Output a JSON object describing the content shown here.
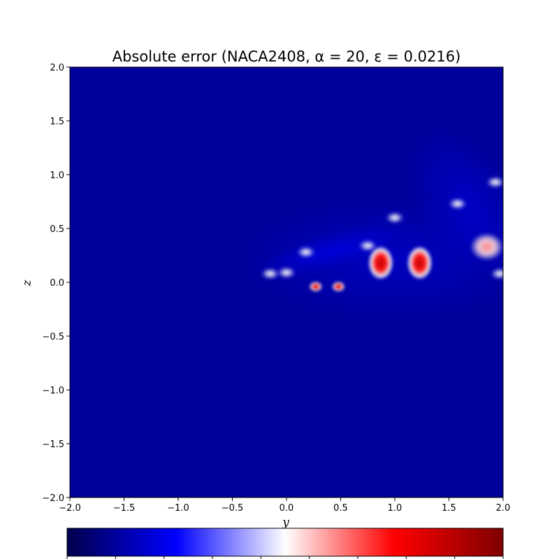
{
  "chart_data": {
    "type": "heatmap",
    "title": "Absolute error (NACA2408, α = 20, ε = 0.0216)",
    "xlabel": "y",
    "ylabel": "z",
    "xlim": [
      -2.0,
      2.0
    ],
    "ylim": [
      -2.0,
      2.0
    ],
    "x_ticks": [
      "−2.0",
      "−1.5",
      "−1.0",
      "−0.5",
      "0.0",
      "0.5",
      "1.0",
      "1.5",
      "2.0"
    ],
    "y_ticks": [
      "2.0",
      "1.5",
      "1.0",
      "0.5",
      "0.0",
      "−0.5",
      "−1.0",
      "−1.5",
      "−2.0"
    ],
    "colormap": "seismic",
    "colormap_stops": [
      "#00004c",
      "#0000ff",
      "#ffffff",
      "#ff0000",
      "#7f0000"
    ],
    "colorbar": {
      "orientation": "horizontal",
      "location": "bottom",
      "tick_count": 10
    },
    "background_color": "#00009a",
    "hotspots": [
      {
        "y": -0.15,
        "z": 0.08,
        "level": 0.55
      },
      {
        "y": 0.0,
        "z": 0.09,
        "level": 0.52
      },
      {
        "y": 0.27,
        "z": -0.04,
        "level": 0.72
      },
      {
        "y": 0.48,
        "z": -0.04,
        "level": 0.74
      },
      {
        "y": 0.18,
        "z": 0.28,
        "level": 0.48
      },
      {
        "y": 0.75,
        "z": 0.34,
        "level": 0.55
      },
      {
        "y": 0.87,
        "z": 0.18,
        "level": 0.92
      },
      {
        "y": 1.0,
        "z": 0.6,
        "level": 0.56
      },
      {
        "y": 1.23,
        "z": 0.18,
        "level": 0.9
      },
      {
        "y": 1.58,
        "z": 0.73,
        "level": 0.55
      },
      {
        "y": 1.85,
        "z": 0.33,
        "level": 0.66
      },
      {
        "y": 1.97,
        "z": 0.08,
        "level": 0.55
      },
      {
        "y": 1.93,
        "z": 0.93,
        "level": 0.52
      }
    ]
  }
}
